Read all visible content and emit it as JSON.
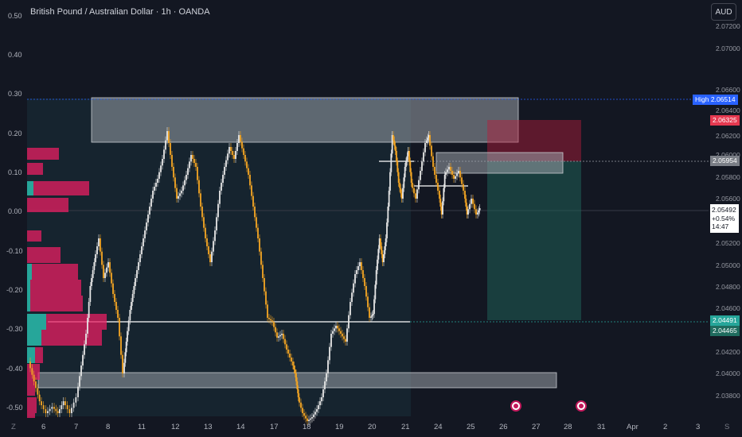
{
  "header": {
    "symbol_title": "British Pound / Australian Dollar · 1h · OANDA",
    "currency_button": "AUD"
  },
  "left_axis": {
    "labels": [
      "0.50",
      "0.40",
      "0.30",
      "0.20",
      "0.10",
      "0.00",
      "-0.10",
      "-0.20",
      "-0.30",
      "-0.40",
      "-0.50"
    ]
  },
  "right_axis": {
    "labels": [
      "2.07200",
      "2.07000",
      "2.06600",
      "2.06400",
      "2.06200",
      "2.06000",
      "2.05800",
      "2.05600",
      "2.05200",
      "2.05000",
      "2.04800",
      "2.04600",
      "2.04200",
      "2.04000",
      "2.03800"
    ]
  },
  "price_tags": {
    "high_label": "High",
    "high_value": "2.06514",
    "stop_value": "2.06325",
    "entry_value": "2.05954",
    "target_value_1": "2.04491",
    "target_value_2": "2.04465"
  },
  "current_price": {
    "price": "2.05492",
    "change": "+0.54%",
    "countdown": "14:47"
  },
  "time_axis": {
    "labels": [
      "Z",
      "6",
      "7",
      "8",
      "11",
      "12",
      "13",
      "14",
      "17",
      "18",
      "19",
      "20",
      "21",
      "24",
      "25",
      "26",
      "27",
      "28",
      "31",
      "Apr",
      "2",
      "3",
      "S"
    ]
  },
  "colors": {
    "background": "#131722",
    "candle_orange": "#f5a623",
    "candle_white": "#e6e6e6",
    "volume_pink": "#e91e63",
    "volume_teal": "#26a69a",
    "stop_zone": "#f44336",
    "target_zone": "#26a69a",
    "high_tag": "#2962ff"
  },
  "events": [
    {
      "icon": "economic-event-icon"
    },
    {
      "icon": "economic-event-icon"
    }
  ]
}
